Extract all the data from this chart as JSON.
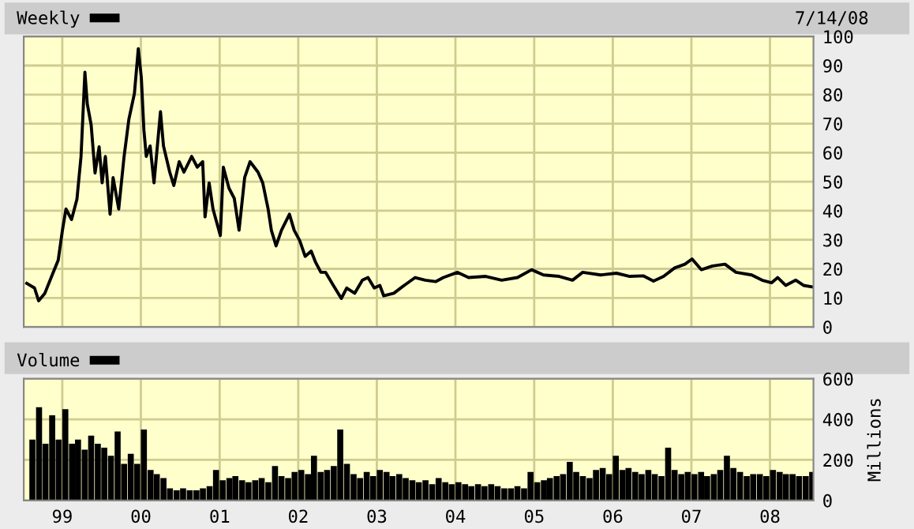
{
  "chart_data": [
    {
      "type": "line",
      "legend": "top left",
      "grid": true,
      "tick_labels": "y",
      "annotations": [
        "7/14/08"
      ],
      "xlim": [
        "1998-07-06",
        "2008-07-21"
      ],
      "xticks": [
        {
          "value": "1999",
          "label": null
        },
        {
          "value": "2000",
          "label": null
        },
        {
          "value": "2001",
          "label": null
        },
        {
          "value": "2002",
          "label": null
        },
        {
          "value": "2003",
          "label": null
        },
        {
          "value": "2004",
          "label": null
        },
        {
          "value": "2005",
          "label": null
        },
        {
          "value": "2006",
          "label": null
        },
        {
          "value": "2007",
          "label": null
        },
        {
          "value": "2008",
          "label": null
        }
      ],
      "ylim": [
        0,
        100
      ],
      "yticks": [
        0,
        10,
        20,
        30,
        40,
        50,
        60,
        70,
        80,
        90,
        100
      ],
      "series": [
        {
          "name": "Weekly",
          "color": "#000000",
          "x": [
            "1998-07-20",
            "1998-08-25",
            "1998-09-13",
            "1998-10-12",
            "1998-11-21",
            "1998-12-13",
            "1999-01-01",
            "1999-01-18",
            "1999-02-13",
            "1999-03-10",
            "1999-03-29",
            "1999-04-16",
            "1999-04-27",
            "1999-05-15",
            "1999-06-02",
            "1999-06-21",
            "1999-07-05",
            "1999-07-20",
            "1999-08-11",
            "1999-08-25",
            "1999-09-20",
            "1999-10-15",
            "1999-11-06",
            "1999-12-02",
            "1999-12-20",
            "2000-01-03",
            "2000-01-15",
            "2000-01-26",
            "2000-02-13",
            "2000-03-02",
            "2000-04-01",
            "2000-04-15",
            "2000-05-14",
            "2000-06-02",
            "2000-06-27",
            "2000-07-19",
            "2000-08-24",
            "2000-09-19",
            "2000-10-14",
            "2000-10-25",
            "2000-11-13",
            "2000-12-01",
            "2001-01-04",
            "2001-01-18",
            "2001-02-13",
            "2001-03-10",
            "2001-04-01",
            "2001-04-27",
            "2001-05-22",
            "2001-06-28",
            "2001-07-20",
            "2001-08-14",
            "2001-08-29",
            "2001-09-20",
            "2001-10-15",
            "2001-11-21",
            "2001-12-13",
            "2002-01-08",
            "2002-02-02",
            "2002-03-02",
            "2002-03-21",
            "2002-04-16",
            "2002-05-08",
            "2002-06-13",
            "2002-07-20",
            "2002-08-14",
            "2002-09-20",
            "2002-10-26",
            "2002-11-21",
            "2002-12-20",
            "2003-01-15",
            "2003-02-02",
            "2003-03-21",
            "2003-05-08",
            "2003-06-28",
            "2003-08-14",
            "2003-10-01",
            "2003-11-06",
            "2004-01-11",
            "2004-03-02",
            "2004-05-21",
            "2004-08-03",
            "2004-10-15",
            "2004-12-20",
            "2005-02-13",
            "2005-04-27",
            "2005-06-28",
            "2005-08-14",
            "2005-11-06",
            "2006-01-18",
            "2006-03-21",
            "2006-05-22",
            "2006-07-09",
            "2006-08-25",
            "2006-10-15",
            "2006-12-02",
            "2007-01-04",
            "2007-02-16",
            "2007-04-09",
            "2007-06-06",
            "2007-07-27",
            "2007-10-08",
            "2007-11-25",
            "2008-01-08",
            "2008-02-06",
            "2008-03-14",
            "2008-04-30",
            "2008-06-05",
            "2008-07-14"
          ],
          "values": [
            15,
            13.4,
            9,
            11.6,
            19,
            23,
            33,
            40.6,
            37,
            44,
            58.7,
            87.7,
            76.8,
            69.6,
            53,
            62,
            49.6,
            58.7,
            38.8,
            51.4,
            40.6,
            58.7,
            71.4,
            80.4,
            95.8,
            85.9,
            67.8,
            58.7,
            62.3,
            49.6,
            74.1,
            62.3,
            53.3,
            48.7,
            56.9,
            53.3,
            58.7,
            55,
            56.9,
            37.9,
            49.6,
            40.6,
            31.5,
            55,
            47.8,
            44.2,
            33.3,
            51.4,
            56.9,
            53.3,
            49.6,
            40.6,
            33.3,
            27.9,
            33.3,
            38.8,
            33.3,
            29.7,
            24.3,
            26.1,
            22.5,
            18.8,
            18.8,
            14.3,
            9.8,
            13.4,
            11.6,
            16.1,
            17,
            13.4,
            14.3,
            10.7,
            11.6,
            14.3,
            17,
            16.1,
            15.6,
            17,
            18.8,
            17,
            17.4,
            16.1,
            17,
            19.7,
            17.9,
            17.4,
            16.1,
            18.8,
            17.9,
            18.5,
            17.4,
            17.6,
            15.8,
            17.4,
            20.3,
            21.6,
            23.4,
            19.7,
            21,
            21.6,
            18.8,
            17.9,
            16.1,
            15.2,
            17,
            14.3,
            16.1,
            14.3,
            13.8
          ]
        }
      ]
    },
    {
      "type": "bar",
      "legend": "top left",
      "grid": true,
      "ylabel": "Millions",
      "xlim": [
        "1998-07-06",
        "2008-07-21"
      ],
      "xticks": [
        {
          "value": "1999",
          "label": "99"
        },
        {
          "value": "2000",
          "label": "00"
        },
        {
          "value": "2001",
          "label": "01"
        },
        {
          "value": "2002",
          "label": "02"
        },
        {
          "value": "2003",
          "label": "03"
        },
        {
          "value": "2004",
          "label": "04"
        },
        {
          "value": "2005",
          "label": "05"
        },
        {
          "value": "2006",
          "label": "06"
        },
        {
          "value": "2007",
          "label": "07"
        },
        {
          "value": "2008",
          "label": "08"
        }
      ],
      "ylim": [
        0,
        600
      ],
      "yticks": [
        0,
        200,
        400,
        600
      ],
      "series": [
        {
          "name": "Volume",
          "color": "#000000",
          "x": [
            "1998-08",
            "1998-09",
            "1998-10",
            "1998-11",
            "1998-12",
            "1999-01",
            "1999-02",
            "1999-03",
            "1999-04",
            "1999-05",
            "1999-06",
            "1999-07",
            "1999-08",
            "1999-09",
            "1999-10",
            "1999-11",
            "1999-12",
            "2000-01",
            "2000-02",
            "2000-03",
            "2000-04",
            "2000-05",
            "2000-06",
            "2000-07",
            "2000-08",
            "2000-09",
            "2000-10",
            "2000-11",
            "2000-12",
            "2001-01",
            "2001-02",
            "2001-03",
            "2001-04",
            "2001-05",
            "2001-06",
            "2001-07",
            "2001-08",
            "2001-09",
            "2001-10",
            "2001-11",
            "2001-12",
            "2002-01",
            "2002-02",
            "2002-03",
            "2002-04",
            "2002-05",
            "2002-06",
            "2002-07",
            "2002-08",
            "2002-09",
            "2002-10",
            "2002-11",
            "2002-12",
            "2003-01",
            "2003-02",
            "2003-03",
            "2003-04",
            "2003-05",
            "2003-06",
            "2003-07",
            "2003-08",
            "2003-09",
            "2003-10",
            "2003-11",
            "2003-12",
            "2004-01",
            "2004-02",
            "2004-03",
            "2004-04",
            "2004-05",
            "2004-06",
            "2004-07",
            "2004-08",
            "2004-09",
            "2004-10",
            "2004-11",
            "2004-12",
            "2005-01",
            "2005-02",
            "2005-03",
            "2005-04",
            "2005-05",
            "2005-06",
            "2005-07",
            "2005-08",
            "2005-09",
            "2005-10",
            "2005-11",
            "2005-12",
            "2006-01",
            "2006-02",
            "2006-03",
            "2006-04",
            "2006-05",
            "2006-06",
            "2006-07",
            "2006-08",
            "2006-09",
            "2006-10",
            "2006-11",
            "2006-12",
            "2007-01",
            "2007-02",
            "2007-03",
            "2007-04",
            "2007-05",
            "2007-06",
            "2007-07",
            "2007-08",
            "2007-09",
            "2007-10",
            "2007-11",
            "2007-12",
            "2008-01",
            "2008-02",
            "2008-03",
            "2008-04",
            "2008-05",
            "2008-06",
            "2008-07"
          ],
          "values": [
            300,
            460,
            280,
            420,
            300,
            450,
            280,
            300,
            250,
            320,
            280,
            260,
            220,
            340,
            180,
            230,
            180,
            350,
            150,
            130,
            110,
            60,
            50,
            60,
            50,
            50,
            60,
            70,
            150,
            100,
            110,
            120,
            100,
            90,
            100,
            110,
            90,
            170,
            120,
            110,
            140,
            150,
            130,
            220,
            140,
            150,
            170,
            350,
            180,
            130,
            110,
            140,
            120,
            150,
            140,
            120,
            130,
            110,
            100,
            90,
            100,
            80,
            110,
            90,
            80,
            90,
            80,
            70,
            80,
            70,
            80,
            70,
            60,
            60,
            70,
            60,
            140,
            90,
            100,
            110,
            120,
            130,
            190,
            140,
            120,
            110,
            150,
            160,
            130,
            220,
            150,
            160,
            140,
            130,
            150,
            130,
            120,
            260,
            150,
            130,
            140,
            130,
            140,
            120,
            130,
            150,
            220,
            160,
            140,
            120,
            130,
            130,
            120,
            150,
            140,
            130,
            130,
            120,
            120,
            140
          ]
        }
      ]
    }
  ]
}
